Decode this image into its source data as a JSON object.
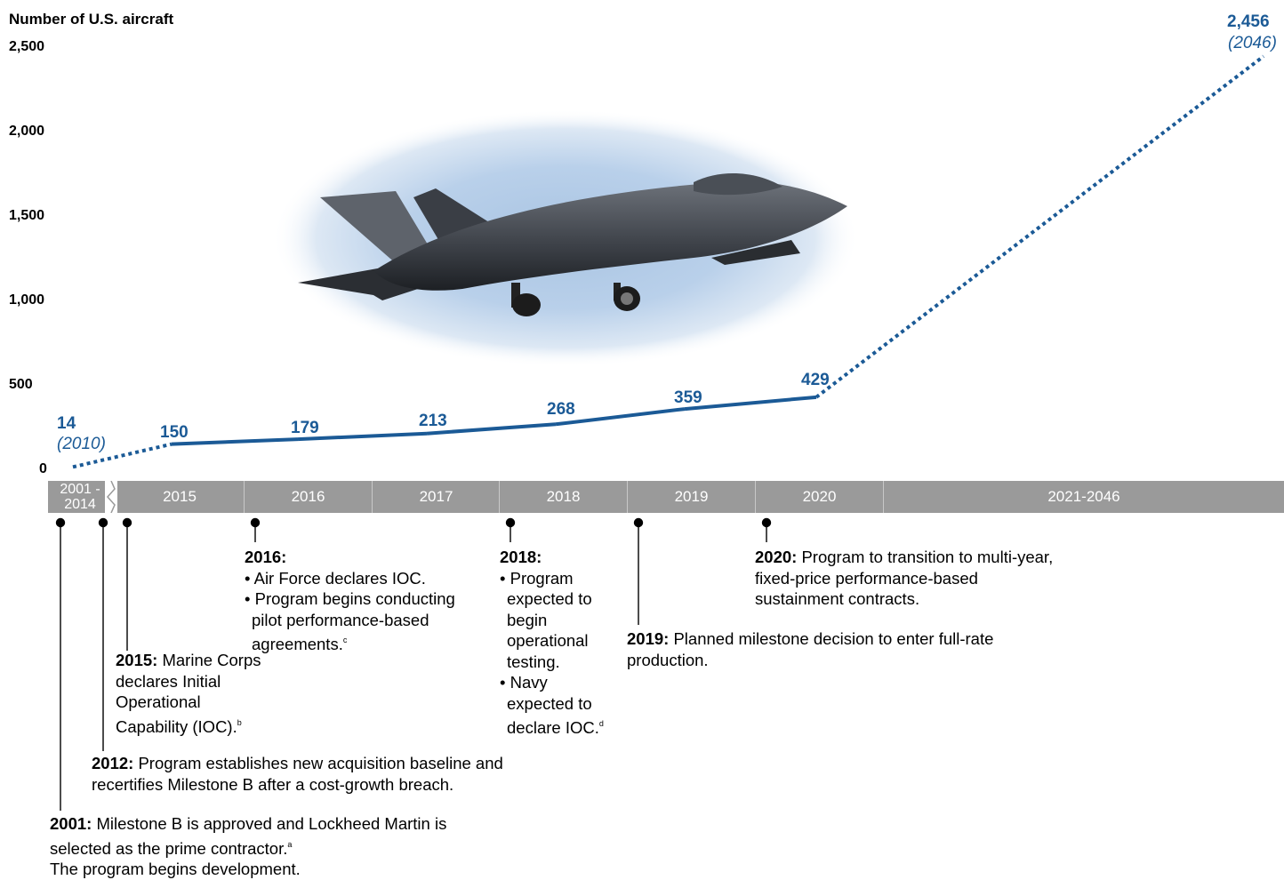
{
  "chart_data": {
    "type": "line",
    "ylabel": "Number of U.S. aircraft",
    "ylim": [
      0,
      2500
    ],
    "yticks": [
      "2,500",
      "2,000",
      "1,500",
      "1,000",
      "500",
      "0"
    ],
    "x_categories": [
      "2001 - 2014",
      "2015",
      "2016",
      "2017",
      "2018",
      "2019",
      "2020",
      "2021-2046"
    ],
    "series": [
      {
        "points": [
          {
            "x": "2010",
            "y": 14,
            "label": "14",
            "sublabel": "(2010)",
            "style": "dotted"
          },
          {
            "x": "2015",
            "y": 150,
            "label": "150",
            "style": "solid"
          },
          {
            "x": "2016",
            "y": 179,
            "label": "179",
            "style": "solid"
          },
          {
            "x": "2017",
            "y": 213,
            "label": "213",
            "style": "solid"
          },
          {
            "x": "2018",
            "y": 268,
            "label": "268",
            "style": "solid"
          },
          {
            "x": "2019",
            "y": 359,
            "label": "359",
            "style": "solid"
          },
          {
            "x": "2020",
            "y": 429,
            "label": "429",
            "style": "dotted"
          },
          {
            "x": "2046",
            "y": 2456,
            "label": "2,456",
            "sublabel": "(2046)",
            "style": "dotted"
          }
        ]
      }
    ]
  },
  "colors": {
    "line": "#1b5a96",
    "timeline_bar": "#9a9a9a"
  },
  "image": {
    "subject": "jet fighter aircraft"
  },
  "milestones": {
    "m2001": {
      "year": "2001:",
      "text": "Milestone B is approved and Lockheed Martin is selected as the prime contractor.",
      "note": "a",
      "text2": "The program begins development."
    },
    "m2012": {
      "year": "2012:",
      "text": "Program establishes new acquisition baseline and recertifies Milestone B after a cost-growth breach."
    },
    "m2015": {
      "year": "2015:",
      "text": "Marine Corps declares Initial Operational Capability (IOC).",
      "note": "b"
    },
    "m2016": {
      "year": "2016:",
      "bullets": [
        "Air Force declares IOC.",
        "Program begins conducting pilot performance-based agreements."
      ],
      "note": "c"
    },
    "m2018": {
      "year": "2018:",
      "bullets": [
        "Program expected to begin operational testing.",
        "Navy expected to declare IOC."
      ],
      "note": "d"
    },
    "m2019": {
      "year": "2019:",
      "text": "Planned milestone decision to enter full-rate production."
    },
    "m2020": {
      "year": "2020:",
      "text": "Program to transition to multi-year, fixed-price performance-based sustainment contracts."
    }
  }
}
